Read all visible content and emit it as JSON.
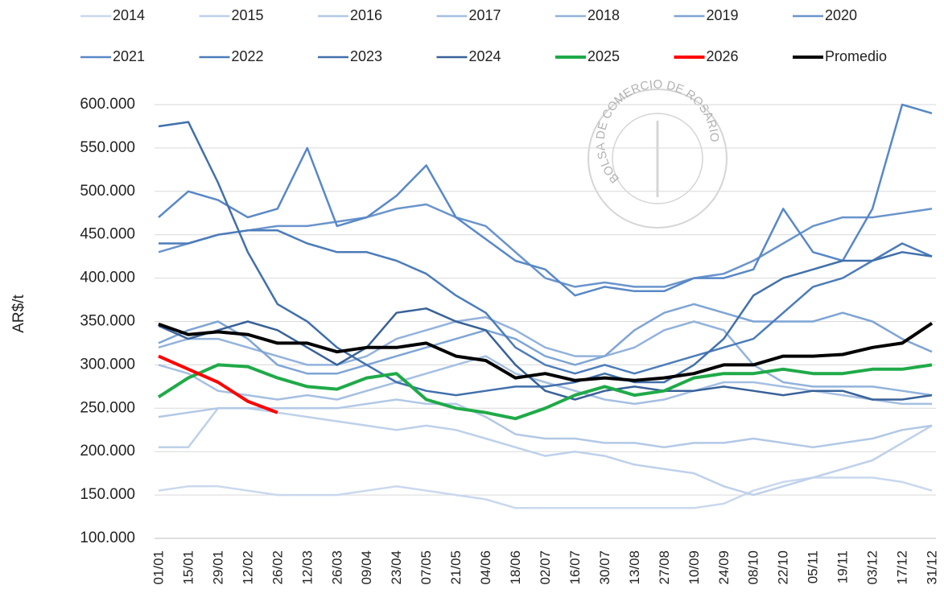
{
  "chart_data": {
    "type": "line",
    "y_label": "AR$/t",
    "watermark": "BOLSA DE COMERCIO DE ROSARIO",
    "categories": [
      "01/01",
      "15/01",
      "29/01",
      "12/02",
      "26/02",
      "12/03",
      "26/03",
      "09/04",
      "23/04",
      "07/05",
      "21/05",
      "04/06",
      "18/06",
      "02/07",
      "16/07",
      "30/07",
      "13/08",
      "27/08",
      "10/09",
      "24/09",
      "08/10",
      "22/10",
      "05/11",
      "19/11",
      "03/12",
      "17/12",
      "31/12"
    ],
    "ylim": [
      100000,
      600000
    ],
    "yticks": [
      {
        "value": 100000,
        "label": "100.000"
      },
      {
        "value": 150000,
        "label": "150.000"
      },
      {
        "value": 200000,
        "label": "200.000"
      },
      {
        "value": 250000,
        "label": "250.000"
      },
      {
        "value": 300000,
        "label": "300.000"
      },
      {
        "value": 350000,
        "label": "350.000"
      },
      {
        "value": 400000,
        "label": "400.000"
      },
      {
        "value": 450000,
        "label": "450.000"
      },
      {
        "value": 500000,
        "label": "500.000"
      },
      {
        "value": 550000,
        "label": "550.000"
      },
      {
        "value": 600000,
        "label": "600.000"
      }
    ],
    "grid": true,
    "series": [
      {
        "name": "2014",
        "color": "#c9d8ee",
        "values": [
          155000,
          160000,
          160000,
          155000,
          150000,
          150000,
          150000,
          155000,
          160000,
          155000,
          150000,
          145000,
          135000,
          135000,
          135000,
          135000,
          135000,
          135000,
          135000,
          140000,
          155000,
          165000,
          170000,
          170000,
          170000,
          165000,
          155000
        ]
      },
      {
        "name": "2015",
        "color": "#bed0ea",
        "values": [
          205000,
          205000,
          250000,
          250000,
          245000,
          240000,
          235000,
          230000,
          225000,
          230000,
          225000,
          215000,
          205000,
          195000,
          200000,
          195000,
          185000,
          180000,
          175000,
          160000,
          150000,
          160000,
          170000,
          180000,
          190000,
          210000,
          230000
        ]
      },
      {
        "name": "2016",
        "color": "#b2c8e6",
        "values": [
          240000,
          245000,
          250000,
          250000,
          250000,
          250000,
          250000,
          255000,
          260000,
          255000,
          255000,
          240000,
          220000,
          215000,
          215000,
          210000,
          210000,
          205000,
          210000,
          210000,
          215000,
          210000,
          205000,
          210000,
          215000,
          225000,
          230000
        ]
      },
      {
        "name": "2017",
        "color": "#a5bfe2",
        "values": [
          300000,
          290000,
          270000,
          265000,
          260000,
          265000,
          260000,
          270000,
          280000,
          290000,
          300000,
          310000,
          290000,
          280000,
          270000,
          260000,
          255000,
          260000,
          270000,
          280000,
          280000,
          275000,
          270000,
          265000,
          260000,
          255000,
          255000
        ]
      },
      {
        "name": "2018",
        "color": "#92b2dc",
        "values": [
          320000,
          330000,
          330000,
          320000,
          310000,
          300000,
          300000,
          310000,
          330000,
          340000,
          350000,
          355000,
          340000,
          320000,
          310000,
          310000,
          320000,
          340000,
          350000,
          340000,
          300000,
          280000,
          275000,
          275000,
          275000,
          270000,
          265000
        ]
      },
      {
        "name": "2019",
        "color": "#7ea4d5",
        "values": [
          325000,
          340000,
          350000,
          330000,
          300000,
          290000,
          290000,
          300000,
          310000,
          320000,
          330000,
          340000,
          330000,
          310000,
          300000,
          310000,
          340000,
          360000,
          370000,
          360000,
          350000,
          350000,
          350000,
          360000,
          350000,
          330000,
          315000
        ]
      },
      {
        "name": "2020",
        "color": "#6994cc",
        "values": [
          430000,
          440000,
          450000,
          455000,
          460000,
          460000,
          465000,
          470000,
          480000,
          485000,
          470000,
          460000,
          430000,
          400000,
          390000,
          395000,
          390000,
          390000,
          400000,
          405000,
          420000,
          440000,
          460000,
          470000,
          470000,
          475000,
          480000
        ]
      },
      {
        "name": "2021",
        "color": "#5888c6",
        "values": [
          470000,
          500000,
          490000,
          470000,
          480000,
          550000,
          460000,
          470000,
          495000,
          530000,
          470000,
          445000,
          420000,
          410000,
          380000,
          390000,
          385000,
          385000,
          400000,
          400000,
          410000,
          480000,
          430000,
          420000,
          480000,
          600000,
          590000
        ]
      },
      {
        "name": "2022",
        "color": "#4c7cba",
        "values": [
          440000,
          440000,
          450000,
          455000,
          455000,
          440000,
          430000,
          430000,
          420000,
          405000,
          380000,
          360000,
          320000,
          300000,
          290000,
          300000,
          290000,
          300000,
          310000,
          320000,
          330000,
          360000,
          390000,
          400000,
          420000,
          440000,
          425000
        ]
      },
      {
        "name": "2023",
        "color": "#4170ab",
        "values": [
          575000,
          580000,
          510000,
          430000,
          370000,
          350000,
          320000,
          300000,
          280000,
          270000,
          265000,
          270000,
          275000,
          275000,
          280000,
          290000,
          280000,
          280000,
          300000,
          330000,
          380000,
          400000,
          410000,
          420000,
          420000,
          430000,
          425000
        ]
      },
      {
        "name": "2024",
        "color": "#386198",
        "values": [
          345000,
          330000,
          340000,
          350000,
          340000,
          320000,
          300000,
          320000,
          360000,
          365000,
          350000,
          340000,
          300000,
          270000,
          260000,
          270000,
          275000,
          270000,
          270000,
          275000,
          270000,
          265000,
          270000,
          270000,
          260000,
          260000,
          265000
        ]
      },
      {
        "name": "2025",
        "color": "#1faa48",
        "values": [
          263000,
          285000,
          300000,
          298000,
          285000,
          275000,
          272000,
          285000,
          290000,
          260000,
          250000,
          245000,
          238000,
          250000,
          265000,
          275000,
          265000,
          270000,
          285000,
          290000,
          290000,
          295000,
          290000,
          290000,
          295000,
          295000,
          300000
        ]
      },
      {
        "name": "2026",
        "color": "#ff0000",
        "values": [
          310000,
          295000,
          280000,
          258000,
          245000,
          null,
          null,
          null,
          null,
          null,
          null,
          null,
          null,
          null,
          null,
          null,
          null,
          null,
          null,
          null,
          null,
          null,
          null,
          null,
          null,
          null,
          null
        ]
      },
      {
        "name": "Promedio",
        "color": "#000000",
        "values": [
          347000,
          335000,
          338000,
          335000,
          325000,
          325000,
          315000,
          320000,
          320000,
          325000,
          310000,
          305000,
          285000,
          290000,
          282000,
          285000,
          282000,
          285000,
          290000,
          300000,
          300000,
          310000,
          310000,
          312000,
          320000,
          325000,
          348000
        ]
      }
    ]
  }
}
